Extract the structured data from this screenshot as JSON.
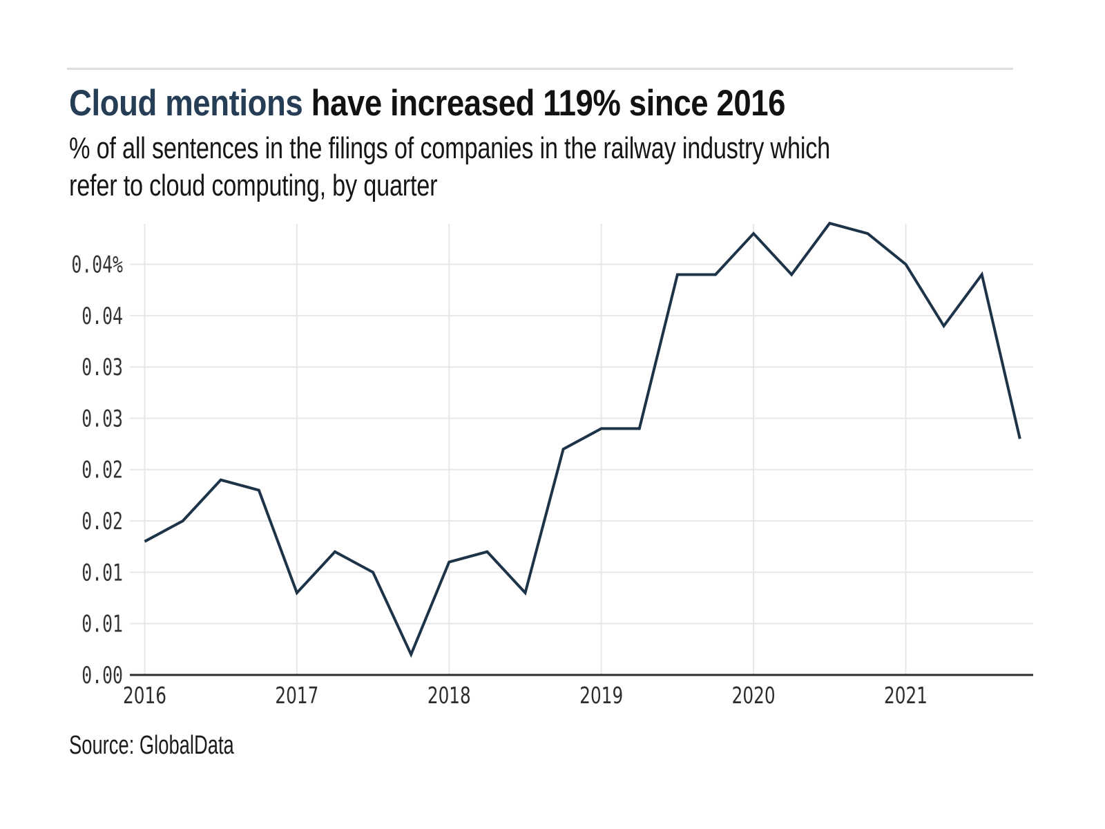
{
  "header": {
    "title_accent": "Cloud mentions",
    "title_rest": " have increased 119% since 2016",
    "subtitle_line1": "% of all sentences in the filings of companies in the railway industry which",
    "subtitle_line2": "refer to cloud computing, by quarter"
  },
  "source": "Source: GlobalData",
  "colors": {
    "accent": "#253d55",
    "line": "#1d3348",
    "grid": "#e7e7e7",
    "axis": "#2b2b2b",
    "top_rule": "#dedede",
    "y_tick_text": "#343434",
    "x_tick_text": "#2d2d2d",
    "background": "#ffffff"
  },
  "chart_data": {
    "type": "line",
    "title": "Cloud mentions have increased 119% since 2016",
    "subtitle": "% of all sentences in the filings of companies in the railway industry which refer to cloud computing, by quarter",
    "unit": "%",
    "grid": true,
    "legend": "none",
    "ylim": [
      0,
      0.044
    ],
    "x": [
      "Q1 2016",
      "Q2 2016",
      "Q3 2016",
      "Q4 2016",
      "Q1 2017",
      "Q2 2017",
      "Q3 2017",
      "Q4 2017",
      "Q1 2018",
      "Q2 2018",
      "Q3 2018",
      "Q4 2018",
      "Q1 2019",
      "Q2 2019",
      "Q3 2019",
      "Q4 2019",
      "Q1 2020",
      "Q2 2020",
      "Q3 2020",
      "Q4 2020",
      "Q1 2021",
      "Q2 2021",
      "Q3 2021",
      "Q4 2021"
    ],
    "values": [
      0.013,
      0.015,
      0.019,
      0.018,
      0.008,
      0.012,
      0.01,
      0.002,
      0.011,
      0.012,
      0.008,
      0.022,
      0.024,
      0.024,
      0.039,
      0.039,
      0.043,
      0.039,
      0.044,
      0.043,
      0.04,
      0.034,
      0.039,
      0.023
    ],
    "y_ticks": [
      {
        "value": 0.0,
        "label": "0.00"
      },
      {
        "value": 0.005,
        "label": "0.01"
      },
      {
        "value": 0.01,
        "label": "0.01"
      },
      {
        "value": 0.015,
        "label": "0.02"
      },
      {
        "value": 0.02,
        "label": "0.02"
      },
      {
        "value": 0.025,
        "label": "0.03"
      },
      {
        "value": 0.03,
        "label": "0.03"
      },
      {
        "value": 0.035,
        "label": "0.04"
      },
      {
        "value": 0.04,
        "label": "0.04%"
      }
    ],
    "x_ticks": [
      {
        "quarter_index": 0,
        "label": "2016"
      },
      {
        "quarter_index": 4,
        "label": "2017"
      },
      {
        "quarter_index": 8,
        "label": "2018"
      },
      {
        "quarter_index": 12,
        "label": "2019"
      },
      {
        "quarter_index": 16,
        "label": "2020"
      },
      {
        "quarter_index": 20,
        "label": "2021"
      }
    ]
  }
}
